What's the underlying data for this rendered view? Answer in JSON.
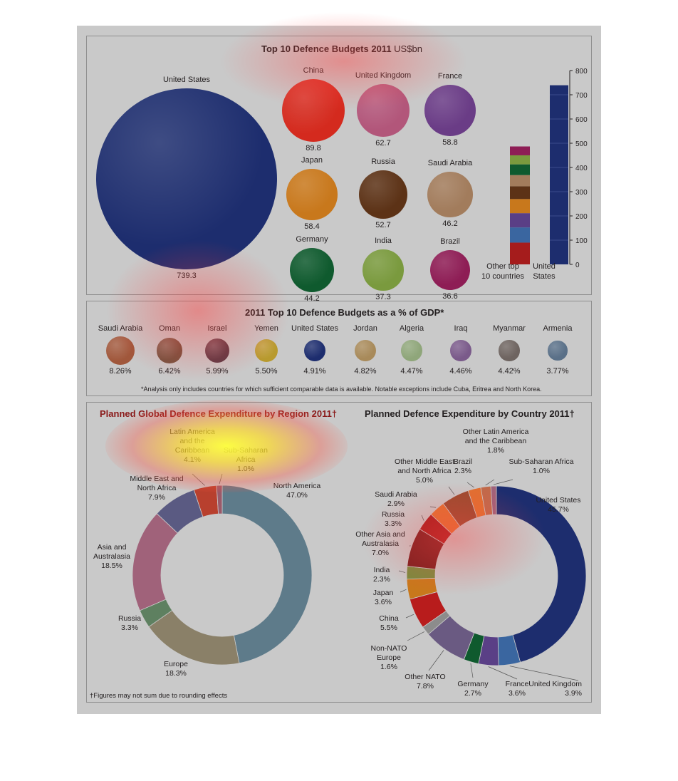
{
  "panel1": {
    "title": "Top 10 Defence Budgets 2011",
    "title_unit": "US$bn",
    "bubbles": [
      {
        "name": "United States",
        "value": "739.3",
        "color": "#1d2d6e"
      },
      {
        "name": "China",
        "value": "89.8",
        "color": "#d42a1e"
      },
      {
        "name": "United Kingdom",
        "value": "62.7",
        "color": "#b2567a"
      },
      {
        "name": "France",
        "value": "58.8",
        "color": "#6a3c86"
      },
      {
        "name": "Japan",
        "value": "58.4",
        "color": "#c8781c"
      },
      {
        "name": "Russia",
        "value": "52.7",
        "color": "#5c3216"
      },
      {
        "name": "Saudi Arabia",
        "value": "46.2",
        "color": "#a27c5c"
      },
      {
        "name": "Germany",
        "value": "44.2",
        "color": "#0f5a2e"
      },
      {
        "name": "India",
        "value": "37.3",
        "color": "#7a9a3e"
      },
      {
        "name": "Brazil",
        "value": "36.6",
        "color": "#8e1d55"
      }
    ],
    "axis_ticks": [
      "0",
      "100",
      "200",
      "300",
      "400",
      "500",
      "600",
      "700",
      "800"
    ],
    "bar_label_other": [
      "Other top",
      "10 countries"
    ],
    "bar_label_us": [
      "United",
      "States"
    ]
  },
  "panel2": {
    "title": "2011 Top 10 Defence Budgets as a % of GDP*",
    "items": [
      {
        "name": "Saudi Arabia",
        "value": "8.26%",
        "color": "#a0573b"
      },
      {
        "name": "Oman",
        "value": "6.42%",
        "color": "#73523f"
      },
      {
        "name": "Israel",
        "value": "5.99%",
        "color": "#5a3a45"
      },
      {
        "name": "Yemen",
        "value": "5.50%",
        "color": "#b89a2e"
      },
      {
        "name": "United States",
        "value": "4.91%",
        "color": "#1d2d6e"
      },
      {
        "name": "Jordan",
        "value": "4.82%",
        "color": "#a88a5a"
      },
      {
        "name": "Algeria",
        "value": "4.47%",
        "color": "#8fa67a"
      },
      {
        "name": "Iraq",
        "value": "4.46%",
        "color": "#7a5a8a"
      },
      {
        "name": "Myanmar",
        "value": "4.42%",
        "color": "#6e6460"
      },
      {
        "name": "Armenia",
        "value": "3.77%",
        "color": "#5a7088"
      }
    ],
    "footnote": "*Analysis only includes countries for which sufficient comparable data is available. Notable exceptions include Cuba, Eritrea and North Korea."
  },
  "panel3": {
    "title_left": "Planned Global Defence Expenditure by Region 2011†",
    "title_right": "Planned Defence Expenditure by Country 2011†",
    "footnote": "†Figures may not sum due to rounding effects"
  },
  "chart_data": [
    {
      "type": "bar",
      "title": "Top 10 Defence Budgets 2011 US$bn",
      "categories": [
        "United States",
        "China",
        "United Kingdom",
        "France",
        "Japan",
        "Russia",
        "Saudi Arabia",
        "Germany",
        "India",
        "Brazil"
      ],
      "values": [
        739.3,
        89.8,
        62.7,
        58.8,
        58.4,
        52.7,
        46.2,
        44.2,
        37.3,
        36.6
      ],
      "stacked_bars": {
        "categories": [
          "Other top 10 countries",
          "United States"
        ],
        "ylim": [
          0,
          800
        ]
      }
    },
    {
      "type": "bar",
      "title": "2011 Top 10 Defence Budgets as a % of GDP*",
      "categories": [
        "Saudi Arabia",
        "Oman",
        "Israel",
        "Yemen",
        "United States",
        "Jordan",
        "Algeria",
        "Iraq",
        "Myanmar",
        "Armenia"
      ],
      "values": [
        8.26,
        6.42,
        5.99,
        5.5,
        4.91,
        4.82,
        4.47,
        4.46,
        4.42,
        3.77
      ]
    },
    {
      "type": "pie",
      "title": "Planned Global Defence Expenditure by Region 2011†",
      "categories": [
        "North America",
        "Europe",
        "Russia",
        "Asia and Australasia",
        "Middle East and North Africa",
        "Latin America and Caribbean",
        "Sub-Saharan Africa"
      ],
      "values": [
        47.0,
        18.3,
        3.3,
        18.5,
        7.9,
        4.1,
        1.0
      ],
      "colors": [
        "#5e7b8a",
        "#8a8068",
        "#5e8060",
        "#a0627a",
        "#5a5a82",
        "#b8402e",
        "#9a5a6a"
      ]
    },
    {
      "type": "pie",
      "title": "Planned Defence Expenditure by Country 2011†",
      "categories": [
        "United States",
        "United Kingdom",
        "France",
        "Germany",
        "Other NATO",
        "Non-NATO Europe",
        "China",
        "Japan",
        "India",
        "Other Asia and Australasia",
        "Russia",
        "Saudi Arabia",
        "Other Middle East and North Africa",
        "Brazil",
        "Other Latin America and the Caribbean",
        "Sub-Saharan Africa"
      ],
      "values": [
        45.7,
        3.9,
        3.6,
        2.7,
        7.8,
        1.6,
        5.5,
        3.6,
        2.3,
        7.0,
        3.3,
        2.9,
        5.0,
        2.3,
        1.8,
        1.0
      ],
      "colors": [
        "#1d2d6e",
        "#3a66a0",
        "#5a3f86",
        "#0f5a2e",
        "#6a5a82",
        "#8c8c8c",
        "#b81c1c",
        "#c8781c",
        "#7a8a3e",
        "#7a1e1e",
        "#a51c1c",
        "#e07030",
        "#9a4a2e",
        "#e07030",
        "#c06a4a",
        "#a0627a"
      ]
    }
  ]
}
